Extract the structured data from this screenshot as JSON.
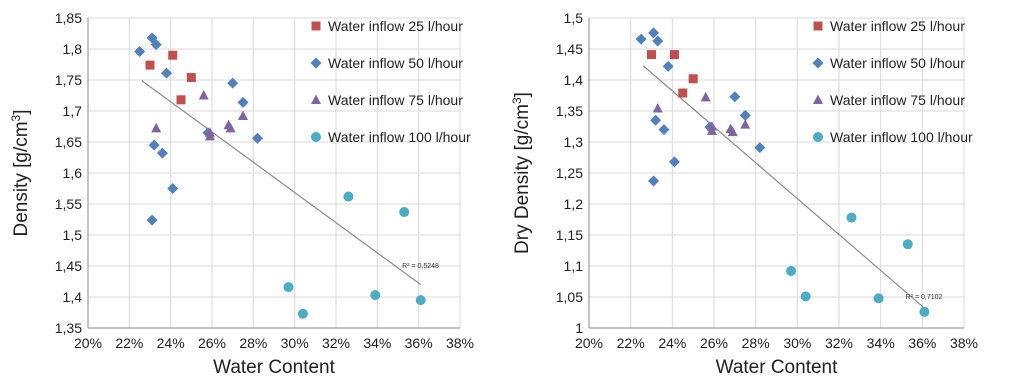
{
  "chart_data": [
    {
      "type": "scatter",
      "xlabel": "Water Content",
      "ylabel": "Density",
      "ylabel_unit": "[g/cm",
      "ylabel_exp": "3",
      "ylabel_close": "]",
      "xlim": [
        20,
        38
      ],
      "ylim": [
        1.35,
        1.85
      ],
      "xticks": [
        20,
        22,
        24,
        26,
        28,
        30,
        32,
        34,
        36,
        38
      ],
      "xtick_labels": [
        "20%",
        "22%",
        "24%",
        "26%",
        "28%",
        "30%",
        "32%",
        "34%",
        "36%",
        "38%"
      ],
      "yticks": [
        1.35,
        1.4,
        1.45,
        1.5,
        1.55,
        1.6,
        1.65,
        1.7,
        1.75,
        1.8,
        1.85
      ],
      "ytick_labels": [
        "1,35",
        "1,4",
        "1,45",
        "1,5",
        "1,55",
        "1,6",
        "1,65",
        "1,7",
        "1,75",
        "1,8",
        "1,85"
      ],
      "grid": true,
      "legend_position": "top-right",
      "series": [
        {
          "name": "Water inflow 25 l/hour",
          "marker": "square",
          "color": "#c0504d",
          "points": [
            [
              23.0,
              1.774
            ],
            [
              24.1,
              1.79
            ],
            [
              24.5,
              1.718
            ],
            [
              25.0,
              1.754
            ]
          ]
        },
        {
          "name": "Water inflow 50 l/hour",
          "marker": "diamond",
          "color": "#4f81bd",
          "points": [
            [
              22.5,
              1.796
            ],
            [
              23.1,
              1.818
            ],
            [
              23.3,
              1.807
            ],
            [
              23.8,
              1.761
            ],
            [
              23.2,
              1.645
            ],
            [
              23.6,
              1.632
            ],
            [
              24.1,
              1.575
            ],
            [
              23.1,
              1.524
            ],
            [
              25.8,
              1.665
            ],
            [
              27.0,
              1.745
            ],
            [
              27.5,
              1.714
            ],
            [
              28.2,
              1.656
            ]
          ]
        },
        {
          "name": "Water inflow 75 l/hour",
          "marker": "triangle",
          "color": "#8064a2",
          "points": [
            [
              23.3,
              1.672
            ],
            [
              25.6,
              1.725
            ],
            [
              25.9,
              1.665
            ],
            [
              25.9,
              1.659
            ],
            [
              26.8,
              1.677
            ],
            [
              26.9,
              1.672
            ],
            [
              27.5,
              1.692
            ]
          ]
        },
        {
          "name": "Water inflow 100 l/hour",
          "marker": "circle",
          "color": "#4bacc6",
          "points": [
            [
              29.7,
              1.416
            ],
            [
              30.4,
              1.373
            ],
            [
              32.6,
              1.562
            ],
            [
              33.9,
              1.403
            ],
            [
              35.3,
              1.537
            ],
            [
              36.1,
              1.395
            ]
          ]
        }
      ],
      "trendline": {
        "x": [
          22.6,
          36.1
        ],
        "y": [
          1.749,
          1.42
        ]
      },
      "annotation": "R² = 0,5248",
      "annotation_at": [
        35.2,
        1.447
      ]
    },
    {
      "type": "scatter",
      "xlabel": "Water Content",
      "ylabel": "Dry Density",
      "ylabel_unit": "[g/cm",
      "ylabel_exp": "3",
      "ylabel_close": "]",
      "xlim": [
        20,
        38
      ],
      "ylim": [
        1.0,
        1.5
      ],
      "xticks": [
        20,
        22,
        24,
        26,
        28,
        30,
        32,
        34,
        36,
        38
      ],
      "xtick_labels": [
        "20%",
        "22%",
        "24%",
        "26%",
        "28%",
        "30%",
        "32%",
        "34%",
        "36%",
        "38%"
      ],
      "yticks": [
        1.0,
        1.05,
        1.1,
        1.15,
        1.2,
        1.25,
        1.3,
        1.35,
        1.4,
        1.45,
        1.5
      ],
      "ytick_labels": [
        "1",
        "1,05",
        "1,1",
        "1,15",
        "1,2",
        "1,25",
        "1,3",
        "1,35",
        "1,4",
        "1,45",
        "1,5"
      ],
      "grid": true,
      "legend_position": "top-right",
      "series": [
        {
          "name": "Water inflow 25 l/hour",
          "marker": "square",
          "color": "#c0504d",
          "points": [
            [
              23.0,
              1.441
            ],
            [
              24.1,
              1.441
            ],
            [
              24.5,
              1.379
            ],
            [
              25.0,
              1.402
            ]
          ]
        },
        {
          "name": "Water inflow 50 l/hour",
          "marker": "diamond",
          "color": "#4f81bd",
          "points": [
            [
              22.5,
              1.466
            ],
            [
              23.1,
              1.476
            ],
            [
              23.3,
              1.463
            ],
            [
              23.8,
              1.422
            ],
            [
              23.2,
              1.335
            ],
            [
              23.6,
              1.32
            ],
            [
              24.1,
              1.268
            ],
            [
              23.1,
              1.237
            ],
            [
              25.8,
              1.324
            ],
            [
              27.0,
              1.373
            ],
            [
              27.5,
              1.343
            ],
            [
              28.2,
              1.291
            ]
          ]
        },
        {
          "name": "Water inflow 75 l/hour",
          "marker": "triangle",
          "color": "#8064a2",
          "points": [
            [
              23.3,
              1.354
            ],
            [
              25.6,
              1.372
            ],
            [
              25.9,
              1.325
            ],
            [
              25.9,
              1.318
            ],
            [
              26.8,
              1.321
            ],
            [
              26.9,
              1.316
            ],
            [
              27.5,
              1.328
            ]
          ]
        },
        {
          "name": "Water inflow 100 l/hour",
          "marker": "circle",
          "color": "#4bacc6",
          "points": [
            [
              29.7,
              1.092
            ],
            [
              30.4,
              1.051
            ],
            [
              32.6,
              1.178
            ],
            [
              33.9,
              1.048
            ],
            [
              35.3,
              1.135
            ],
            [
              36.1,
              1.026
            ]
          ]
        }
      ],
      "trendline": {
        "x": [
          22.6,
          36.1
        ],
        "y": [
          1.423,
          1.032
        ]
      },
      "annotation": "R² = 0,7102",
      "annotation_at": [
        35.2,
        1.047
      ]
    }
  ]
}
